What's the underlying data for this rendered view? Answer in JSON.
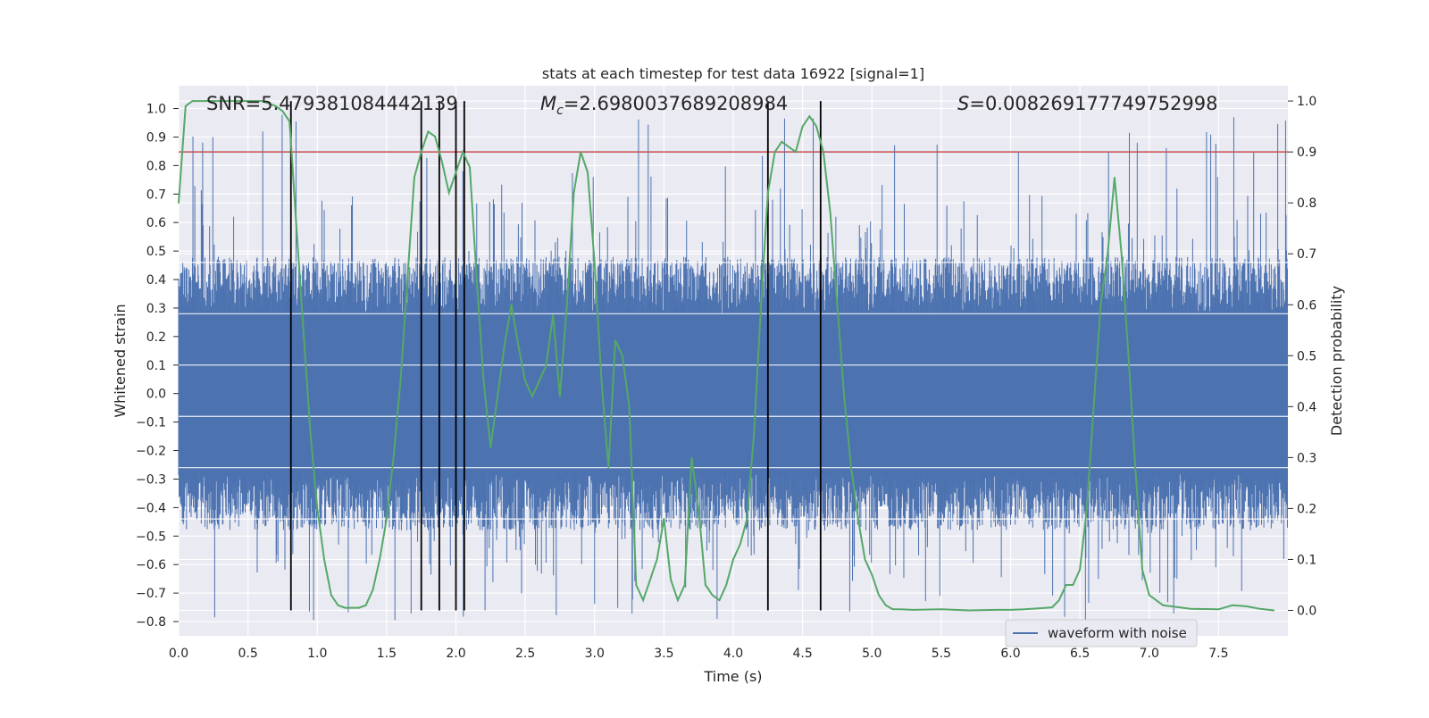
{
  "chart_data": {
    "type": "line",
    "title": "stats at each timestep for test data 16922 [signal=1]",
    "xlabel": "Time (s)",
    "ylabel_left": "Whitened strain",
    "ylabel_right": "Detection probability",
    "xlim": [
      0,
      8
    ],
    "ylim_left": [
      -0.85,
      1.08
    ],
    "ylim_right": [
      -0.05,
      1.03
    ],
    "x_ticks": [
      "0.0",
      "0.5",
      "1.0",
      "1.5",
      "2.0",
      "2.5",
      "3.0",
      "3.5",
      "4.0",
      "4.5",
      "5.0",
      "5.5",
      "6.0",
      "6.5",
      "7.0",
      "7.5"
    ],
    "y_left_ticks": [
      "−0.8",
      "−0.7",
      "−0.6",
      "−0.5",
      "−0.4",
      "−0.3",
      "−0.2",
      "−0.1",
      "0.0",
      "0.1",
      "0.2",
      "0.3",
      "0.4",
      "0.5",
      "0.6",
      "0.7",
      "0.8",
      "0.9",
      "1.0"
    ],
    "y_right_ticks": [
      "0.0",
      "0.1",
      "0.2",
      "0.3",
      "0.4",
      "0.5",
      "0.6",
      "0.7",
      "0.8",
      "0.9",
      "1.0"
    ],
    "annotations": {
      "snr": "SNR=5.479381084442139",
      "mc_prefix": "M",
      "mc_sub": "c",
      "mc_value": "=2.6980037689208984",
      "s_prefix": "S",
      "s_value": "=0.008269177749752998"
    },
    "threshold": 0.9,
    "vertical_lines": [
      0.81,
      1.75,
      1.88,
      2.0,
      2.06,
      4.25,
      4.63
    ],
    "legend": {
      "label": "waveform with noise",
      "position": "lower-right"
    },
    "colors": {
      "waveform": "#4c72b0",
      "probability": "#55a868",
      "threshold": "#c44e52",
      "event_lines": "#000000",
      "background": "#eaeaf2",
      "grid": "#ffffff"
    },
    "series": [
      {
        "name": "waveform with noise",
        "axis": "left",
        "description_of_envelope": "dense noisy strain signal, core approx ±0.30, spikes up to ~1.0 and down to ~−0.80"
      },
      {
        "name": "detection probability",
        "axis": "right",
        "x": [
          0.0,
          0.05,
          0.1,
          0.2,
          0.3,
          0.4,
          0.5,
          0.6,
          0.7,
          0.75,
          0.8,
          0.85,
          0.9,
          0.95,
          1.0,
          1.05,
          1.1,
          1.15,
          1.2,
          1.25,
          1.3,
          1.35,
          1.4,
          1.45,
          1.5,
          1.55,
          1.6,
          1.65,
          1.7,
          1.75,
          1.8,
          1.85,
          1.9,
          1.95,
          2.0,
          2.05,
          2.1,
          2.15,
          2.2,
          2.25,
          2.3,
          2.35,
          2.4,
          2.45,
          2.5,
          2.55,
          2.6,
          2.65,
          2.7,
          2.75,
          2.8,
          2.85,
          2.9,
          2.95,
          3.0,
          3.05,
          3.1,
          3.15,
          3.2,
          3.25,
          3.3,
          3.35,
          3.4,
          3.45,
          3.5,
          3.55,
          3.6,
          3.65,
          3.7,
          3.75,
          3.8,
          3.85,
          3.9,
          3.95,
          4.0,
          4.05,
          4.1,
          4.15,
          4.2,
          4.25,
          4.3,
          4.35,
          4.4,
          4.45,
          4.5,
          4.55,
          4.6,
          4.65,
          4.7,
          4.75,
          4.8,
          4.85,
          4.9,
          4.95,
          5.0,
          5.05,
          5.1,
          5.15,
          5.2,
          5.3,
          5.5,
          5.7,
          5.9,
          6.0,
          6.1,
          6.2,
          6.3,
          6.35,
          6.4,
          6.45,
          6.5,
          6.55,
          6.6,
          6.65,
          6.7,
          6.75,
          6.8,
          6.85,
          6.9,
          6.95,
          7.0,
          7.1,
          7.3,
          7.5,
          7.6,
          7.7,
          7.8,
          7.9
        ],
        "values": [
          0.8,
          0.99,
          1.0,
          1.0,
          1.0,
          1.0,
          1.0,
          1.0,
          0.99,
          0.98,
          0.96,
          0.75,
          0.55,
          0.35,
          0.2,
          0.1,
          0.03,
          0.01,
          0.005,
          0.005,
          0.005,
          0.01,
          0.04,
          0.1,
          0.18,
          0.3,
          0.45,
          0.65,
          0.85,
          0.9,
          0.94,
          0.93,
          0.88,
          0.82,
          0.86,
          0.9,
          0.87,
          0.65,
          0.45,
          0.32,
          0.42,
          0.52,
          0.6,
          0.52,
          0.45,
          0.42,
          0.45,
          0.48,
          0.58,
          0.42,
          0.6,
          0.82,
          0.9,
          0.86,
          0.68,
          0.45,
          0.28,
          0.53,
          0.5,
          0.4,
          0.05,
          0.02,
          0.06,
          0.1,
          0.18,
          0.06,
          0.02,
          0.05,
          0.3,
          0.2,
          0.05,
          0.03,
          0.02,
          0.05,
          0.1,
          0.13,
          0.18,
          0.35,
          0.6,
          0.82,
          0.9,
          0.92,
          0.91,
          0.9,
          0.95,
          0.97,
          0.95,
          0.9,
          0.78,
          0.6,
          0.42,
          0.28,
          0.18,
          0.1,
          0.07,
          0.03,
          0.01,
          0.002,
          0.002,
          0.001,
          0.002,
          0.0,
          0.001,
          0.001,
          0.002,
          0.004,
          0.006,
          0.02,
          0.05,
          0.05,
          0.08,
          0.2,
          0.4,
          0.6,
          0.7,
          0.85,
          0.7,
          0.5,
          0.28,
          0.08,
          0.03,
          0.01,
          0.003,
          0.002,
          0.01,
          0.008,
          0.003,
          0.0
        ]
      }
    ]
  }
}
